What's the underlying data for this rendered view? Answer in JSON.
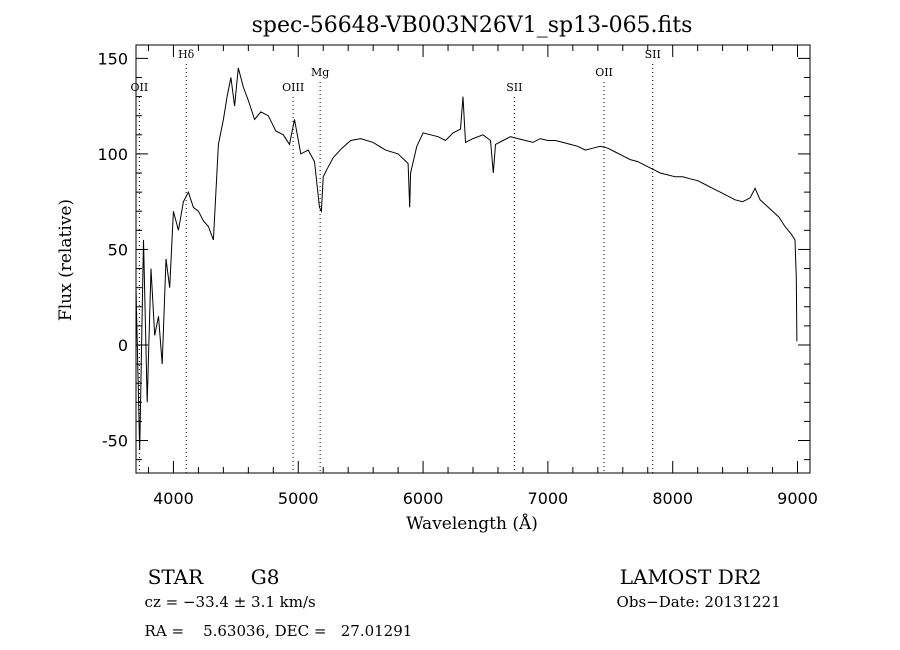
{
  "chart_data": {
    "type": "line",
    "title": "spec-56648-VB003N26V1_sp13-065.fits",
    "xlabel": "Wavelength (Å)",
    "ylabel": "Flux (relative)",
    "xlim": [
      3700,
      9100
    ],
    "ylim": [
      -67,
      157
    ],
    "xticks": [
      4000,
      5000,
      6000,
      7000,
      8000,
      9000
    ],
    "yticks": [
      -50,
      0,
      50,
      100,
      150
    ],
    "grid": false,
    "x": [
      3700,
      3730,
      3760,
      3790,
      3820,
      3850,
      3880,
      3910,
      3940,
      3970,
      4000,
      4040,
      4080,
      4120,
      4160,
      4200,
      4240,
      4280,
      4320,
      4360,
      4400,
      4430,
      4460,
      4490,
      4520,
      4560,
      4600,
      4650,
      4700,
      4760,
      4820,
      4880,
      4930,
      4970,
      5020,
      5080,
      5130,
      5170,
      5185,
      5200,
      5230,
      5280,
      5350,
      5420,
      5500,
      5600,
      5700,
      5800,
      5880,
      5893,
      5900,
      5950,
      6000,
      6060,
      6120,
      6180,
      6240,
      6300,
      6320,
      6340,
      6400,
      6480,
      6540,
      6563,
      6580,
      6640,
      6700,
      6760,
      6820,
      6880,
      6940,
      7000,
      7060,
      7120,
      7180,
      7240,
      7300,
      7360,
      7420,
      7480,
      7540,
      7600,
      7660,
      7720,
      7780,
      7840,
      7900,
      7960,
      8020,
      8080,
      8140,
      8200,
      8260,
      8320,
      8380,
      8440,
      8500,
      8560,
      8620,
      8660,
      8700,
      8750,
      8800,
      8850,
      8900,
      8950,
      8980,
      8990,
      8995
    ],
    "y": [
      30,
      -55,
      55,
      -30,
      40,
      5,
      15,
      -10,
      45,
      30,
      70,
      60,
      75,
      80,
      72,
      70,
      65,
      62,
      55,
      105,
      118,
      130,
      140,
      125,
      145,
      135,
      128,
      118,
      122,
      120,
      112,
      110,
      105,
      118,
      100,
      102,
      96,
      72,
      70,
      88,
      92,
      98,
      103,
      107,
      108,
      106,
      102,
      100,
      95,
      72,
      90,
      104,
      111,
      110,
      109,
      107,
      111,
      113,
      130,
      106,
      108,
      110,
      107,
      90,
      105,
      107,
      109,
      108,
      107,
      106,
      108,
      107,
      107,
      106,
      105,
      104,
      102,
      103,
      104,
      103,
      101,
      99,
      97,
      96,
      94,
      92,
      90,
      89,
      88,
      88,
      87,
      86,
      84,
      82,
      80,
      78,
      76,
      75,
      77,
      82,
      76,
      73,
      70,
      67,
      62,
      58,
      55,
      35,
      2
    ],
    "line_marks": [
      {
        "label": "OII",
        "x": 3727
      },
      {
        "label": "Hδ",
        "x": 4102
      },
      {
        "label": "OIII",
        "x": 4959
      },
      {
        "label": "Mg",
        "x": 5175
      },
      {
        "label": "SII",
        "x": 6731
      },
      {
        "label": "OII",
        "x": 7450
      },
      {
        "label": "SII",
        "x": 7840
      }
    ]
  },
  "info": {
    "class": "STAR",
    "subclass": "G8",
    "survey": "LAMOST DR2",
    "cz": "cz = −33.4 ± 3.1 km/s",
    "obs_date": "Obs−Date: 20131221",
    "coords": "RA =    5.63036, DEC =   27.01291"
  }
}
